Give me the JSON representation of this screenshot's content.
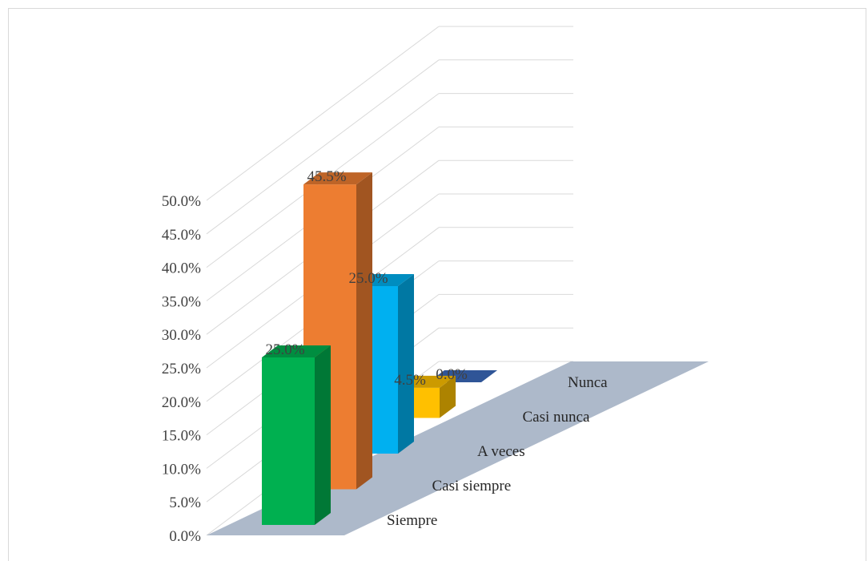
{
  "chart_data": {
    "type": "bar",
    "title": "",
    "xlabel": "",
    "ylabel": "",
    "categories": [
      "Siempre",
      "Casi siempre",
      "A veces",
      "Casi nunca",
      "Nunca"
    ],
    "values": [
      25.0,
      45.5,
      25.0,
      4.5,
      0.0
    ],
    "data_labels": [
      "25.0%",
      "45.5%",
      "25.0%",
      "4.5%",
      "0.0%"
    ],
    "y_ticks": [
      "0.0%",
      "5.0%",
      "10.0%",
      "15.0%",
      "20.0%",
      "25.0%",
      "30.0%",
      "35.0%",
      "40.0%",
      "45.0%",
      "50.0%"
    ],
    "ylim": [
      0,
      50
    ],
    "grid": true,
    "legend": "none",
    "colors": [
      "#00B050",
      "#ED7D31",
      "#00B0F0",
      "#FFC000",
      "#2F5597"
    ]
  }
}
